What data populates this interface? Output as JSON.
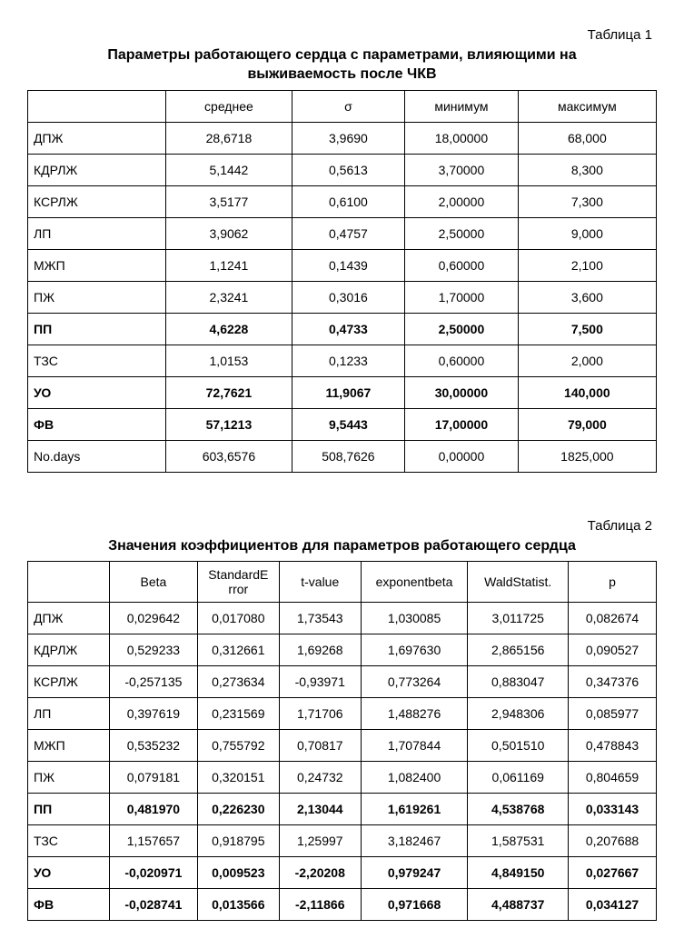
{
  "table1": {
    "label": "Таблица 1",
    "title_line1": "Параметры работающего сердца с параметрами, влияющими на",
    "title_line2": "выживаемость после ЧКВ",
    "columns": [
      "",
      "среднее",
      "σ",
      "минимум",
      "максимум"
    ],
    "rows": [
      {
        "label": "ДПЖ",
        "v": [
          "28,6718",
          "3,9690",
          "18,00000",
          "68,000"
        ],
        "bold": false
      },
      {
        "label": "КДРЛЖ",
        "v": [
          "5,1442",
          "0,5613",
          "3,70000",
          "8,300"
        ],
        "bold": false
      },
      {
        "label": "КСРЛЖ",
        "v": [
          "3,5177",
          "0,6100",
          "2,00000",
          "7,300"
        ],
        "bold": false
      },
      {
        "label": "ЛП",
        "v": [
          "3,9062",
          "0,4757",
          "2,50000",
          "9,000"
        ],
        "bold": false
      },
      {
        "label": "МЖП",
        "v": [
          "1,1241",
          "0,1439",
          "0,60000",
          "2,100"
        ],
        "bold": false
      },
      {
        "label": "ПЖ",
        "v": [
          "2,3241",
          "0,3016",
          "1,70000",
          "3,600"
        ],
        "bold": false
      },
      {
        "label": "ПП",
        "v": [
          "4,6228",
          "0,4733",
          "2,50000",
          "7,500"
        ],
        "bold": true
      },
      {
        "label": "ТЗС",
        "v": [
          "1,0153",
          "0,1233",
          "0,60000",
          "2,000"
        ],
        "bold": false
      },
      {
        "label": "УО",
        "v": [
          "72,7621",
          "11,9067",
          "30,00000",
          "140,000"
        ],
        "bold": true
      },
      {
        "label": "ФВ",
        "v": [
          "57,1213",
          "9,5443",
          "17,00000",
          "79,000"
        ],
        "bold": true
      },
      {
        "label": "No.days",
        "v": [
          "603,6576",
          "508,7626",
          "0,00000",
          "1825,000"
        ],
        "bold": false
      }
    ]
  },
  "table2": {
    "label": "Таблица 2",
    "title": "Значения коэффициентов для параметров работающего сердца",
    "columns": [
      "",
      "Beta",
      "StandardError",
      "t-value",
      "exponentbeta",
      "WaldStatist.",
      "p"
    ],
    "rows": [
      {
        "label": "ДПЖ",
        "v": [
          "0,029642",
          "0,017080",
          "1,73543",
          "1,030085",
          "3,011725",
          "0,082674"
        ],
        "bold": false
      },
      {
        "label": "КДРЛЖ",
        "v": [
          "0,529233",
          "0,312661",
          "1,69268",
          "1,697630",
          "2,865156",
          "0,090527"
        ],
        "bold": false
      },
      {
        "label": "КСРЛЖ",
        "v": [
          "-0,257135",
          "0,273634",
          "-0,93971",
          "0,773264",
          "0,883047",
          "0,347376"
        ],
        "bold": false
      },
      {
        "label": "ЛП",
        "v": [
          "0,397619",
          "0,231569",
          "1,71706",
          "1,488276",
          "2,948306",
          "0,085977"
        ],
        "bold": false
      },
      {
        "label": "МЖП",
        "v": [
          "0,535232",
          "0,755792",
          "0,70817",
          "1,707844",
          "0,501510",
          "0,478843"
        ],
        "bold": false
      },
      {
        "label": "ПЖ",
        "v": [
          "0,079181",
          "0,320151",
          "0,24732",
          "1,082400",
          "0,061169",
          "0,804659"
        ],
        "bold": false
      },
      {
        "label": "ПП",
        "v": [
          "0,481970",
          "0,226230",
          "2,13044",
          "1,619261",
          "4,538768",
          "0,033143"
        ],
        "bold": true
      },
      {
        "label": "ТЗС",
        "v": [
          "1,157657",
          "0,918795",
          "1,25997",
          "3,182467",
          "1,587531",
          "0,207688"
        ],
        "bold": false
      },
      {
        "label": "УО",
        "v": [
          "-0,020971",
          "0,009523",
          "-2,20208",
          "0,979247",
          "4,849150",
          "0,027667"
        ],
        "bold": true
      },
      {
        "label": "ФВ",
        "v": [
          "-0,028741",
          "0,013566",
          "-2,11866",
          "0,971668",
          "4,488737",
          "0,034127"
        ],
        "bold": true
      }
    ]
  }
}
